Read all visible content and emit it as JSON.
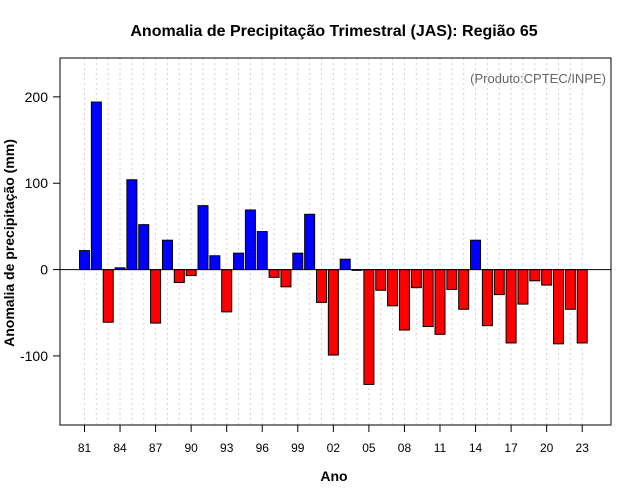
{
  "chart_data": {
    "type": "bar",
    "title": "Anomalia de Precipitação Trimestral (JAS): Região 65",
    "xlabel": "Ano",
    "ylabel": "Anomalia de precipitação (mm)",
    "credit": "(Produto:CPTEC/INPE)",
    "ylim": [
      -180,
      245
    ],
    "yticks": [
      -100,
      0,
      100,
      200
    ],
    "xtick_labels": [
      "81",
      "84",
      "87",
      "90",
      "93",
      "96",
      "99",
      "02",
      "05",
      "08",
      "11",
      "14",
      "17",
      "20",
      "23"
    ],
    "xtick_years": [
      1981,
      1984,
      1987,
      1990,
      1993,
      1996,
      1999,
      2002,
      2005,
      2008,
      2011,
      2014,
      2017,
      2020,
      2023
    ],
    "positive_color": "#0000ff",
    "negative_color": "#ff0000",
    "categories": [
      1981,
      1982,
      1983,
      1984,
      1985,
      1986,
      1987,
      1988,
      1989,
      1990,
      1991,
      1992,
      1993,
      1994,
      1995,
      1996,
      1997,
      1998,
      1999,
      2000,
      2001,
      2002,
      2003,
      2004,
      2005,
      2006,
      2007,
      2008,
      2009,
      2010,
      2011,
      2012,
      2013,
      2014,
      2015,
      2016,
      2017,
      2018,
      2019,
      2020,
      2021,
      2022,
      2023
    ],
    "values": [
      22,
      194,
      -61,
      2,
      104,
      52,
      -62,
      34,
      -15,
      -7,
      74,
      16,
      -49,
      19,
      69,
      44,
      -9,
      -20,
      19,
      64,
      -38,
      -99,
      12,
      0,
      -133,
      -24,
      -42,
      -70,
      -21,
      -66,
      -75,
      -23,
      -46,
      34,
      -65,
      -29,
      -85,
      -40,
      -13,
      -18,
      -86,
      -46,
      -85
    ]
  }
}
